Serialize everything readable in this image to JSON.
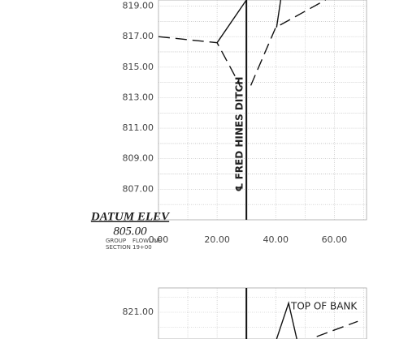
{
  "chart_data": [
    {
      "type": "line",
      "xlim": [
        0,
        71
      ],
      "ylim": [
        805,
        819.4
      ],
      "xticks": [
        {
          "value": 0,
          "label": "0.00"
        },
        {
          "value": 20,
          "label": "20.00"
        },
        {
          "value": 40,
          "label": "40.00"
        },
        {
          "value": 60,
          "label": "60.00"
        }
      ],
      "yticks": [
        {
          "value": 807,
          "label": "807.00"
        },
        {
          "value": 809,
          "label": "809.00"
        },
        {
          "value": 811,
          "label": "811.00"
        },
        {
          "value": 813,
          "label": "813.00"
        },
        {
          "value": 815,
          "label": "815.00"
        },
        {
          "value": 817,
          "label": "817.00"
        },
        {
          "value": 819,
          "label": "819.00"
        }
      ],
      "grid": true,
      "centerline": 30,
      "centerline_label": "℄ FRED HINES DITCH",
      "datum_title": "DATUM ELEV",
      "datum_value": "805.00",
      "group_label": "GROUP",
      "group_value": "FLOWLINE",
      "section_label": "SECTION",
      "section_value": "19+00",
      "series": [
        {
          "color": "#111",
          "style": "dashed",
          "x": [
            0,
            20,
            27,
            28
          ],
          "values": [
            817.0,
            816.6,
            814.1,
            813.7
          ]
        },
        {
          "color": "#111",
          "style": "solid",
          "x": [
            20,
            30
          ],
          "values": [
            816.6,
            819.4
          ]
        },
        {
          "color": "#111",
          "style": "dashed",
          "x": [
            31.5,
            40,
            57
          ],
          "values": [
            813.8,
            817.6,
            819.4
          ]
        },
        {
          "color": "#111",
          "style": "solid",
          "x": [
            41.7,
            40.3
          ],
          "values": [
            819.4,
            817.6
          ]
        }
      ]
    },
    {
      "type": "line",
      "xlim": [
        0,
        71
      ],
      "ylim": [
        819.24,
        822.6
      ],
      "yticks": [
        {
          "value": 821,
          "label": "821.00"
        }
      ],
      "grid": true,
      "centerline": 30,
      "annotation": "TOP OF BANK",
      "series": [
        {
          "color": "#111",
          "style": "solid",
          "x": [
            40.3,
            44.4,
            47.2
          ],
          "values": [
            819.24,
            821.6,
            819.24
          ]
        },
        {
          "color": "#111",
          "style": "dashed",
          "x": [
            54,
            68
          ],
          "values": [
            819.4,
            820.4
          ]
        }
      ]
    }
  ]
}
